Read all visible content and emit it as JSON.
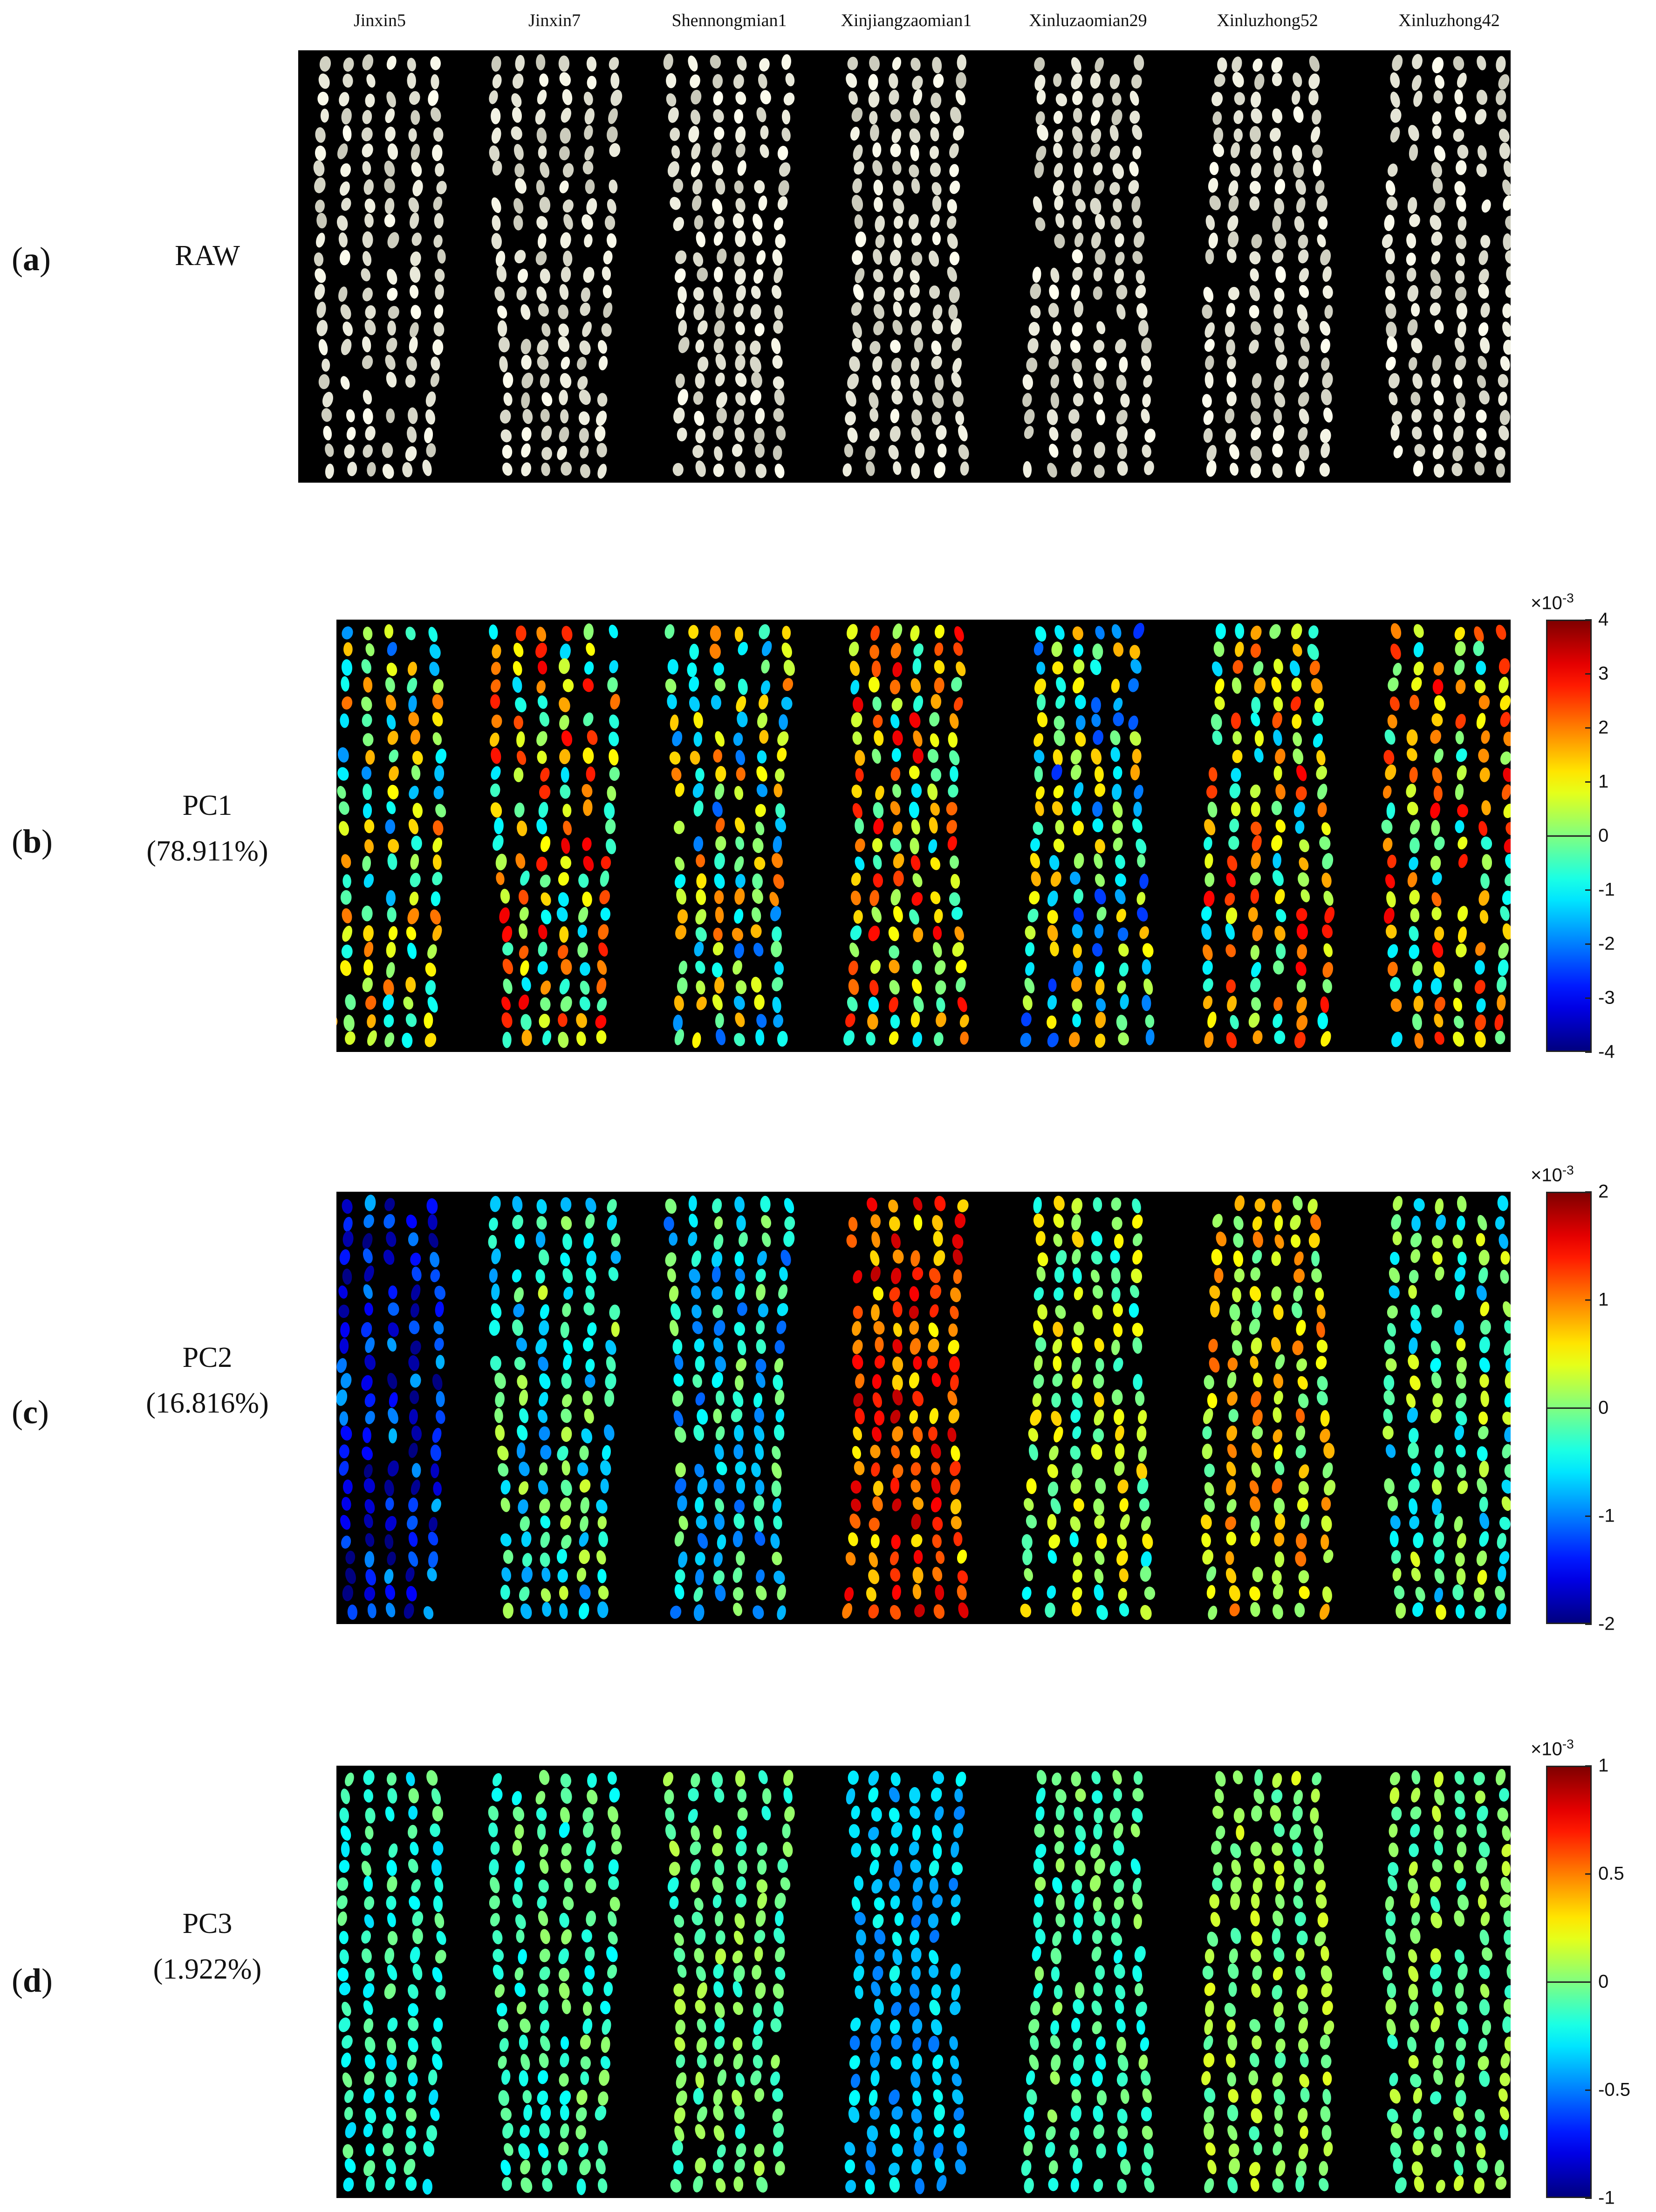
{
  "columns": [
    "Jinxin5",
    "Jinxin7",
    "Shennongmian1",
    "Xinjiangzaomian1",
    "Xinluzaomian29",
    "Xinluzhong52",
    "Xinluzhong42"
  ],
  "panels": [
    {
      "letter": "a",
      "title_line1": "RAW",
      "title_line2": "",
      "mode": "raw"
    },
    {
      "letter": "b",
      "title_line1": "PC1",
      "title_line2": "(78.911%)",
      "mode": "pc1",
      "colorbar": {
        "multiplier_base": "×10",
        "multiplier_exp": "-3",
        "ticks": [
          "4",
          "3",
          "2",
          "1",
          "0",
          "-1",
          "-2",
          "-3",
          "-4"
        ]
      }
    },
    {
      "letter": "c",
      "title_line1": "PC2",
      "title_line2": "(16.816%)",
      "mode": "pc2",
      "colorbar": {
        "multiplier_base": "×10",
        "multiplier_exp": "-3",
        "ticks": [
          "2",
          "1",
          "0",
          "-1",
          "-2"
        ]
      }
    },
    {
      "letter": "d",
      "title_line1": "PC3",
      "title_line2": "(1.922%)",
      "mode": "pc3",
      "colorbar": {
        "multiplier_base": "×10",
        "multiplier_exp": "-3",
        "ticks": [
          "1",
          "0.5",
          "0",
          "-0.5",
          "-1"
        ]
      }
    }
  ],
  "colormap": "jet",
  "background_color": "#000000",
  "raw_seed_color": "#e8e8e8"
}
